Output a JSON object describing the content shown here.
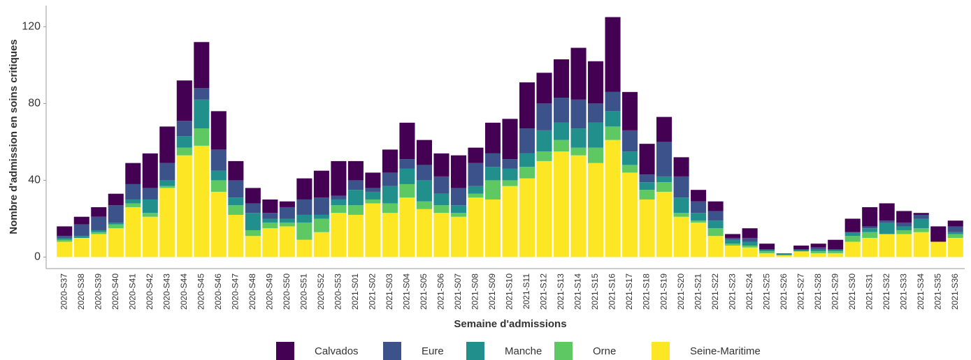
{
  "chart_data": {
    "type": "stacked-bar",
    "x_label": "Semaine d'admissions",
    "y_label": "Nombre d'admission en soins critiques",
    "categories": [
      "2020-S37",
      "2020-S38",
      "2020-S39",
      "2020-S40",
      "2020-S41",
      "2020-S42",
      "2020-S43",
      "2020-S44",
      "2020-S45",
      "2020-S46",
      "2020-S47",
      "2020-S48",
      "2020-S49",
      "2020-S50",
      "2020-S51",
      "2020-S52",
      "2020-S53",
      "2021-S01",
      "2021-S02",
      "2021-S03",
      "2021-S04",
      "2021-S05",
      "2021-S06",
      "2021-S07",
      "2021-S08",
      "2021-S09",
      "2021-S10",
      "2021-S11",
      "2021-S12",
      "2021-S13",
      "2021-S14",
      "2021-S15",
      "2021-S16",
      "2021-S17",
      "2021-S18",
      "2021-S19",
      "2021-S20",
      "2021-S21",
      "2021-S22",
      "2021-S23",
      "2021-S24",
      "2021-S25",
      "2021-S26",
      "2021-S27",
      "2021-S28",
      "2021-S29",
      "2021-S30",
      "2021-S31",
      "2021-S32",
      "2021-S33",
      "2021-S34",
      "2021-S35",
      "2021-S36"
    ],
    "series": [
      {
        "name": "Calvados",
        "color": "#440154",
        "values": [
          5,
          4,
          5,
          6,
          11,
          18,
          19,
          21,
          24,
          20,
          10,
          8,
          7,
          3,
          11,
          14,
          18,
          10,
          8,
          12,
          19,
          13,
          12,
          17,
          8,
          16,
          21,
          24,
          16,
          20,
          27,
          22,
          39,
          20,
          16,
          13,
          10,
          6,
          5,
          2,
          5,
          3,
          0,
          2,
          2,
          5,
          7,
          10,
          9,
          6,
          1,
          8,
          3
        ]
      },
      {
        "name": "Eure",
        "color": "#3b528b",
        "values": [
          1,
          6,
          7,
          9,
          8,
          6,
          9,
          8,
          6,
          11,
          9,
          5,
          3,
          6,
          8,
          9,
          2,
          5,
          2,
          7,
          5,
          8,
          9,
          9,
          12,
          7,
          5,
          13,
          14,
          13,
          15,
          10,
          10,
          11,
          4,
          18,
          11,
          6,
          5,
          1,
          2,
          0,
          0,
          0,
          1,
          0,
          0,
          1,
          1,
          2,
          2,
          0,
          3
        ]
      },
      {
        "name": "Manche",
        "color": "#21908c",
        "values": [
          1,
          1,
          1,
          1,
          2,
          7,
          3,
          6,
          15,
          5,
          4,
          9,
          2,
          2,
          4,
          2,
          3,
          8,
          4,
          9,
          8,
          11,
          6,
          4,
          4,
          7,
          6,
          7,
          11,
          9,
          10,
          13,
          8,
          7,
          4,
          3,
          8,
          4,
          4,
          2,
          2,
          1,
          1,
          1,
          1,
          1,
          2,
          2,
          6,
          2,
          5,
          0,
          1
        ]
      },
      {
        "name": "Orne",
        "color": "#5ec962",
        "values": [
          1,
          0,
          1,
          2,
          2,
          2,
          1,
          4,
          9,
          6,
          5,
          3,
          3,
          2,
          9,
          7,
          4,
          5,
          2,
          5,
          7,
          4,
          4,
          2,
          2,
          10,
          3,
          6,
          5,
          6,
          4,
          8,
          7,
          4,
          5,
          5,
          2,
          1,
          4,
          1,
          1,
          1,
          0,
          0,
          1,
          1,
          3,
          3,
          0,
          2,
          2,
          0,
          2
        ]
      },
      {
        "name": "Seine-Maritime",
        "color": "#fde725",
        "values": [
          8,
          10,
          12,
          15,
          26,
          21,
          36,
          53,
          58,
          34,
          22,
          11,
          15,
          16,
          9,
          13,
          23,
          22,
          28,
          23,
          31,
          25,
          23,
          21,
          31,
          30,
          37,
          41,
          50,
          55,
          53,
          49,
          61,
          44,
          30,
          34,
          21,
          18,
          11,
          6,
          5,
          2,
          1,
          3,
          2,
          2,
          8,
          10,
          12,
          12,
          13,
          8,
          10
        ]
      }
    ],
    "ylim": [
      -6,
      131
    ],
    "yticks": [
      0,
      40,
      80,
      120
    ]
  }
}
